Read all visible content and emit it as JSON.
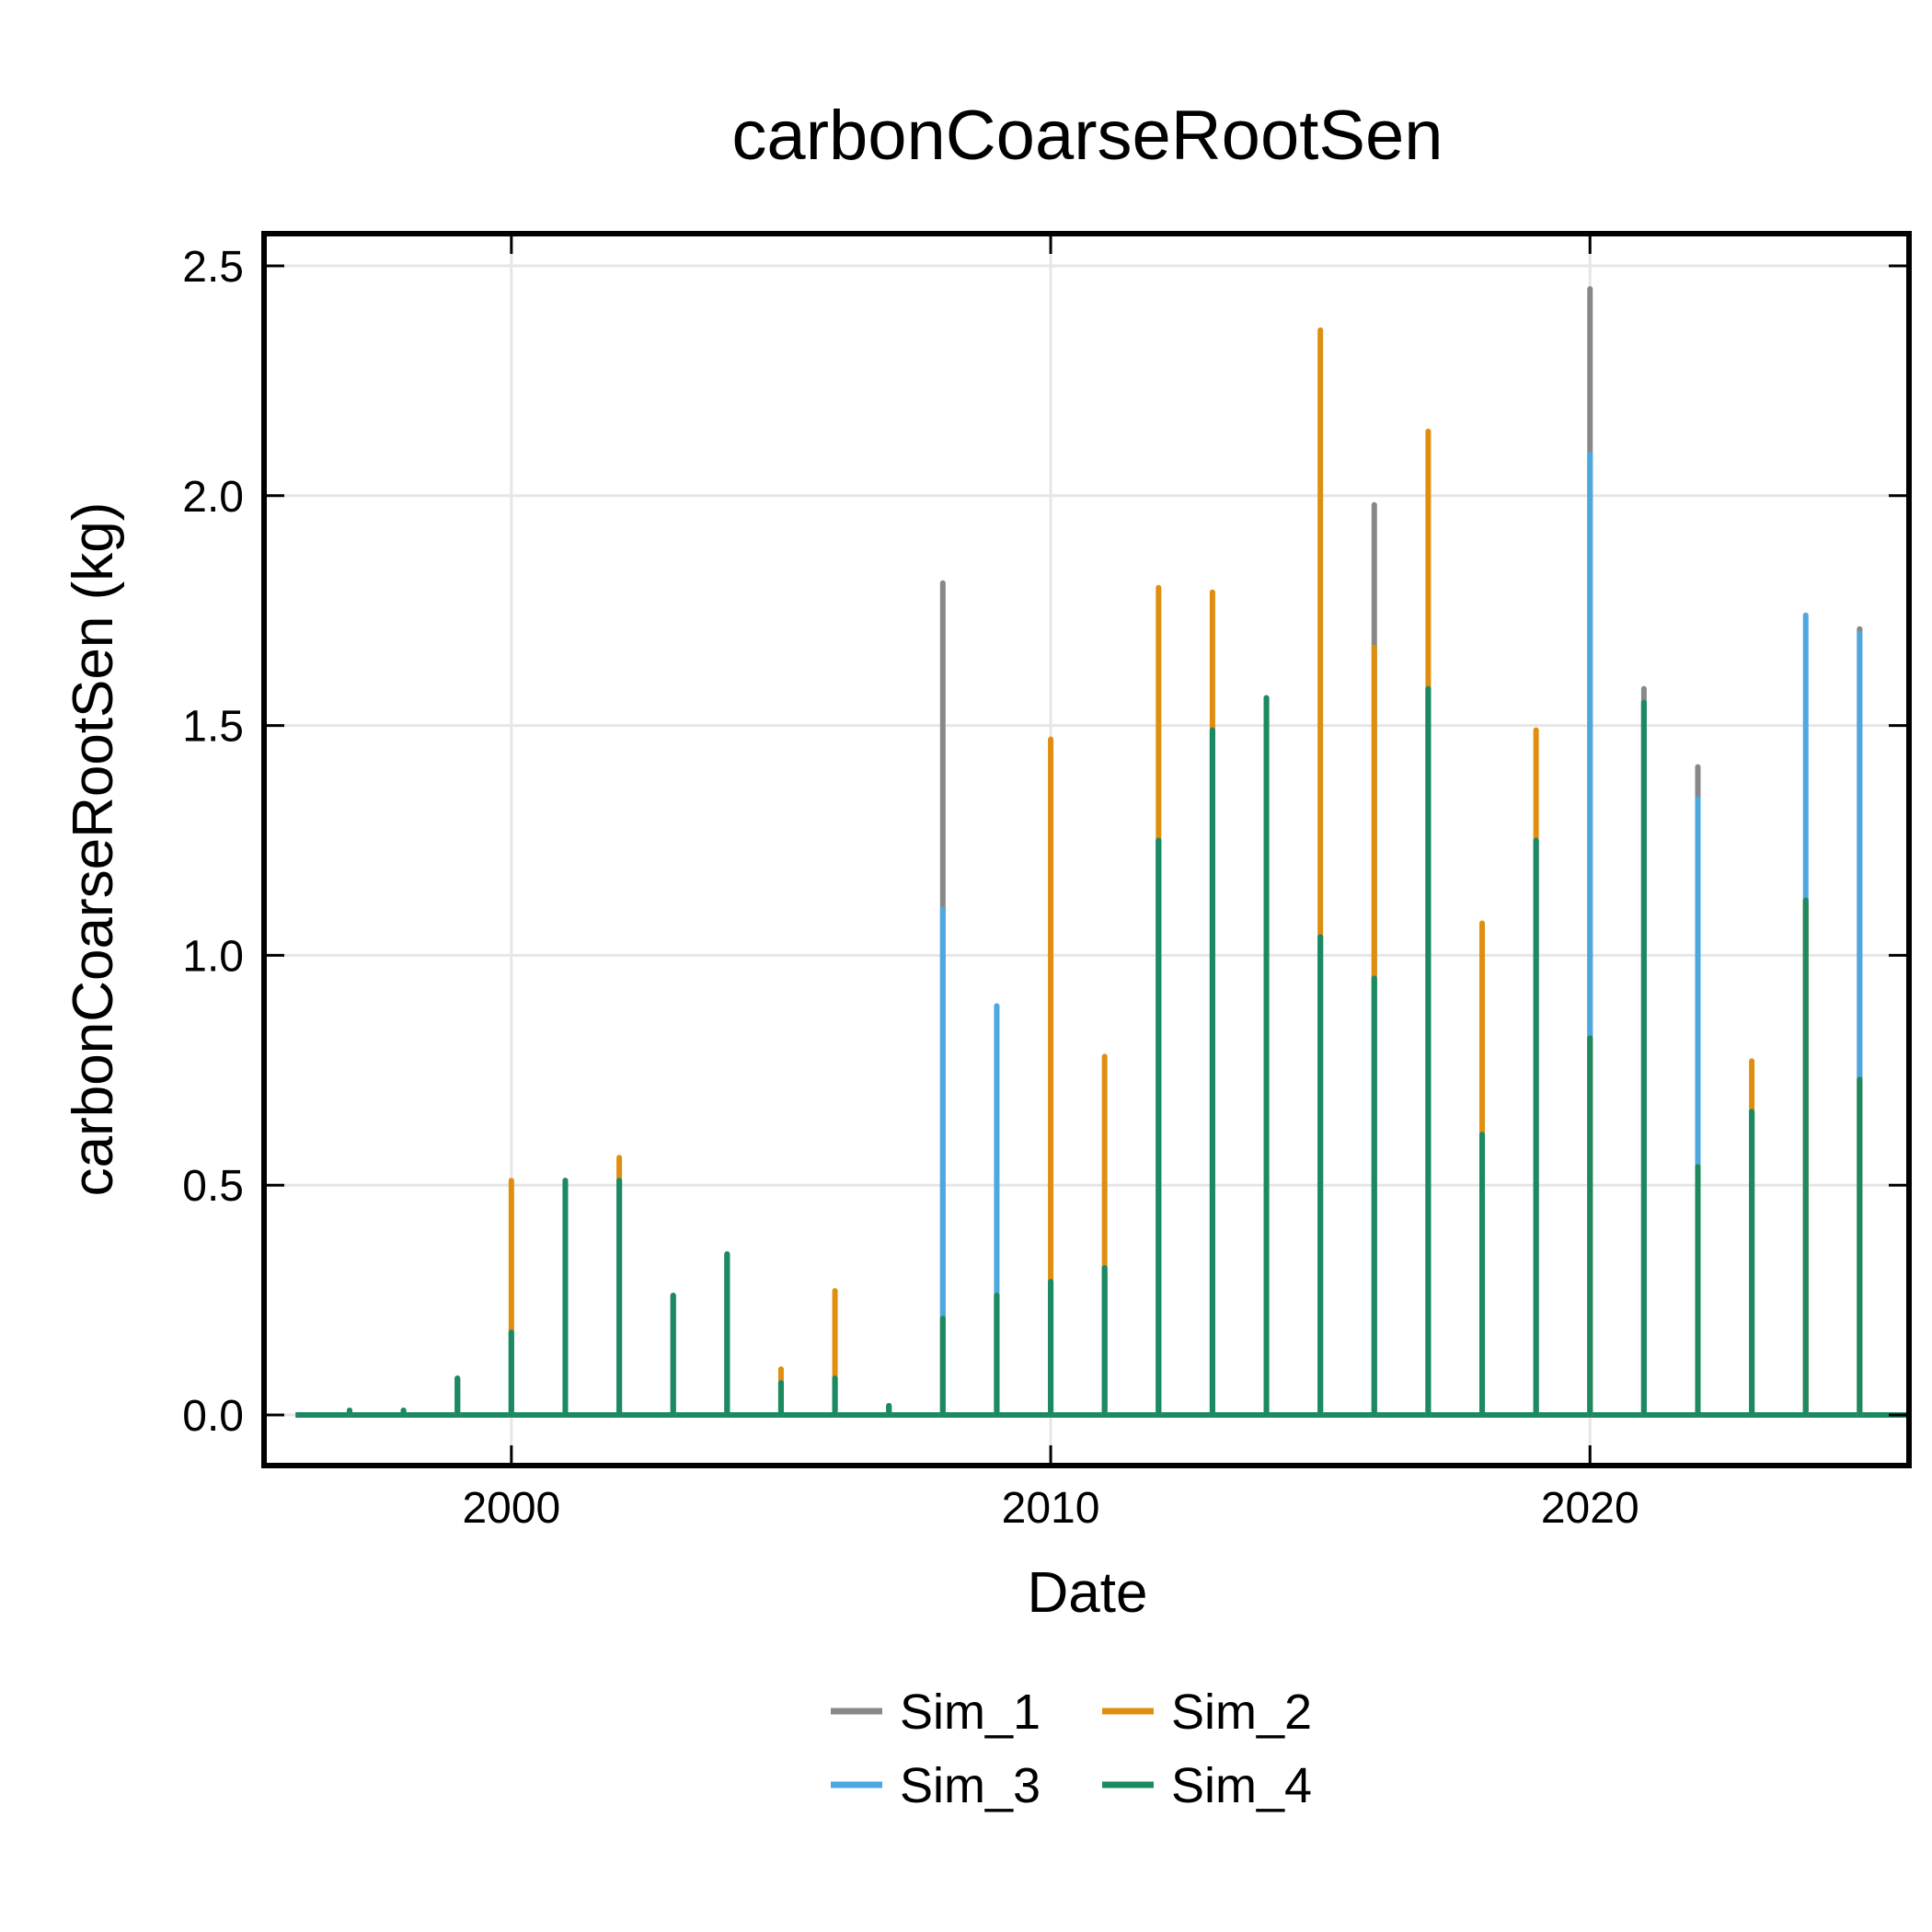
{
  "chart_data": {
    "type": "line",
    "title": "carbonCoarseRootSen",
    "xlabel": "Date",
    "ylabel": "carbonCoarseRootSen (kg)",
    "xlim": [
      "1995-06-01",
      "2025-12-01"
    ],
    "ylim": [
      -0.11,
      2.57
    ],
    "x_ticks": [
      {
        "value": "2000-01-01",
        "label": "2000"
      },
      {
        "value": "2010-01-01",
        "label": "2010"
      },
      {
        "value": "2020-01-01",
        "label": "2020"
      }
    ],
    "y_ticks": [
      {
        "value": 0.0,
        "label": "0.0"
      },
      {
        "value": 0.5,
        "label": "0.5"
      },
      {
        "value": 1.0,
        "label": "1.0"
      },
      {
        "value": 1.5,
        "label": "1.5"
      },
      {
        "value": 2.0,
        "label": "2.0"
      },
      {
        "value": 2.5,
        "label": "2.5"
      }
    ],
    "grid": true,
    "legend": "bottom-center",
    "baseline": {
      "start": "1996-01-01",
      "end": "2025-12-01",
      "value": 0
    },
    "events": [
      "1997-01-01",
      "1998-01-01",
      "1999-01-01",
      "2000-01-01",
      "2001-01-01",
      "2002-01-01",
      "2003-01-01",
      "2004-01-01",
      "2005-01-01",
      "2006-01-01",
      "2007-01-01",
      "2008-01-01",
      "2009-01-01",
      "2010-01-01",
      "2011-01-01",
      "2012-01-01",
      "2013-01-01",
      "2014-01-01",
      "2015-01-01",
      "2016-01-01",
      "2017-01-01",
      "2018-01-01",
      "2019-01-01",
      "2020-01-01",
      "2021-01-01",
      "2022-01-01",
      "2023-01-01",
      "2024-01-01",
      "2025-01-01"
    ],
    "series": [
      {
        "name": "Sim_1",
        "color": "#888888",
        "values": [
          0.01,
          0.01,
          0.08,
          0.18,
          0.51,
          0.51,
          0.26,
          0.35,
          0.07,
          0.08,
          0.02,
          1.81,
          0.26,
          0.29,
          0.32,
          1.25,
          1.49,
          1.56,
          1.04,
          1.98,
          1.58,
          0.61,
          1.25,
          2.45,
          1.58,
          1.41,
          0.66,
          1.12,
          1.71
        ]
      },
      {
        "name": "Sim_2",
        "color": "#E08E10",
        "values": [
          0.01,
          0.01,
          0.08,
          0.51,
          0.51,
          0.56,
          0.26,
          0.35,
          0.1,
          0.27,
          0.02,
          0.21,
          0.26,
          1.47,
          0.78,
          1.8,
          1.79,
          1.56,
          2.36,
          1.67,
          2.14,
          1.07,
          1.49,
          0.82,
          1.55,
          0.54,
          0.77,
          1.12,
          0.73
        ]
      },
      {
        "name": "Sim_3",
        "color": "#4EA8E0",
        "values": [
          0.01,
          0.01,
          0.08,
          0.18,
          0.51,
          0.51,
          0.26,
          0.35,
          0.07,
          0.08,
          0.02,
          1.1,
          0.89,
          0.29,
          0.32,
          1.25,
          1.49,
          1.56,
          1.04,
          0.95,
          1.58,
          0.61,
          1.25,
          2.09,
          1.55,
          1.34,
          0.66,
          1.74,
          1.7
        ]
      },
      {
        "name": "Sim_4",
        "color": "#1B8A60",
        "values": [
          0.01,
          0.01,
          0.08,
          0.18,
          0.51,
          0.51,
          0.26,
          0.35,
          0.07,
          0.08,
          0.02,
          0.21,
          0.26,
          0.29,
          0.32,
          1.25,
          1.49,
          1.56,
          1.04,
          0.95,
          1.58,
          0.61,
          1.25,
          0.82,
          1.55,
          0.54,
          0.66,
          1.12,
          0.73
        ]
      }
    ]
  }
}
